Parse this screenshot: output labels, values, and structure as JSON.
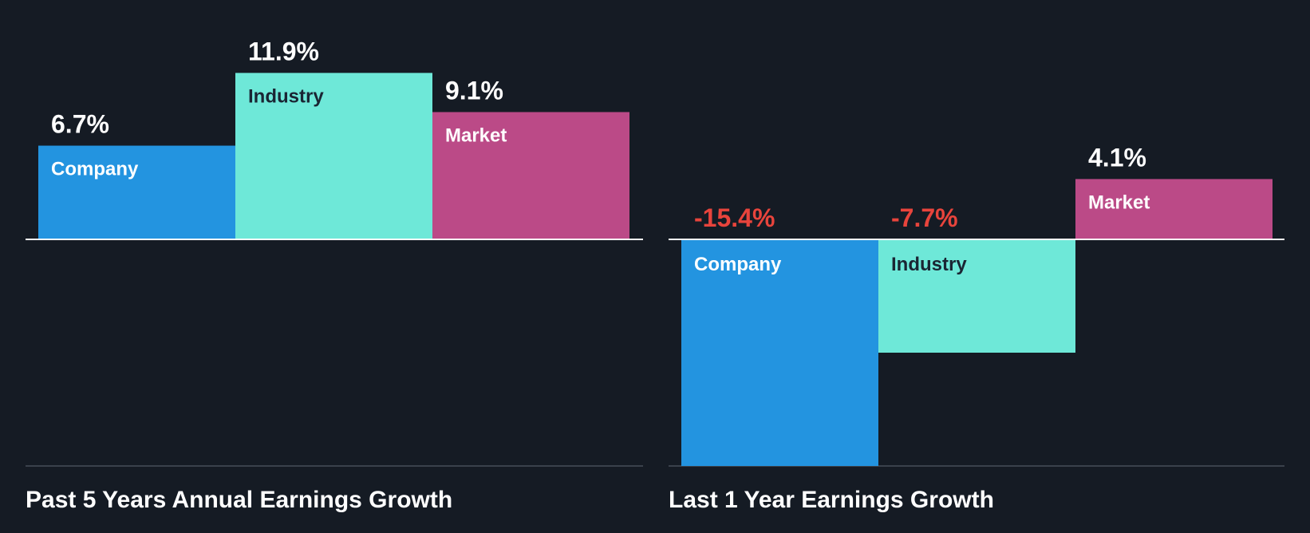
{
  "colors": {
    "background": "#151b24",
    "company": "#2394e0",
    "industry": "#6ee8d8",
    "market": "#bb4a87",
    "positive_label": "#ffffff",
    "negative_label": "#e8443c",
    "category_on_light": "#1a2533",
    "category_on_dark": "#ffffff",
    "axis": "#ffffff",
    "baseline": "#3a414b"
  },
  "chart_data": [
    {
      "type": "bar",
      "title": "Past 5 Years Annual Earnings Growth",
      "categories": [
        "Company",
        "Industry",
        "Market"
      ],
      "values": [
        6.7,
        11.9,
        9.1
      ],
      "value_labels": [
        "6.7%",
        "11.9%",
        "9.1%"
      ],
      "unit": "%",
      "ylim": [
        -16.2,
        11.9
      ],
      "grid": false,
      "legend": "none"
    },
    {
      "type": "bar",
      "title": "Last 1 Year Earnings Growth",
      "categories": [
        "Company",
        "Industry",
        "Market"
      ],
      "values": [
        -15.4,
        -7.7,
        4.1
      ],
      "value_labels": [
        "-15.4%",
        "-7.7%",
        "4.1%"
      ],
      "unit": "%",
      "ylim": [
        -15.4,
        5.1
      ],
      "grid": false,
      "legend": "none"
    }
  ]
}
